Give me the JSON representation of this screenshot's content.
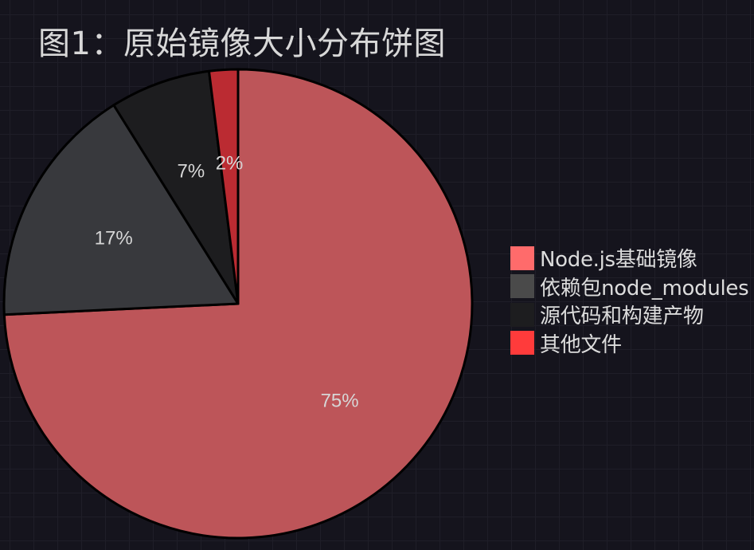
{
  "chart_data": {
    "type": "pie",
    "title": "图1：原始镜像大小分布饼图",
    "start_angle_deg": 90,
    "direction": "clockwise",
    "slices": [
      {
        "label": "Node.js基础镜像",
        "value": 75,
        "display": "75%",
        "color": "#bd5559",
        "legend_color": "#ff6b6b"
      },
      {
        "label": "依赖包node_modules",
        "value": 17,
        "display": "17%",
        "color": "#38393d",
        "legend_color": "#4a4a4a"
      },
      {
        "label": "源代码和构建产物",
        "value": 7,
        "display": "7%",
        "color": "#1d1d1f",
        "legend_color": "#1d1d1f"
      },
      {
        "label": "其他文件",
        "value": 2,
        "display": "2%",
        "color": "#bb2b32",
        "legend_color": "#ff3b3b"
      }
    ],
    "legend_position": "right",
    "grid": false
  }
}
